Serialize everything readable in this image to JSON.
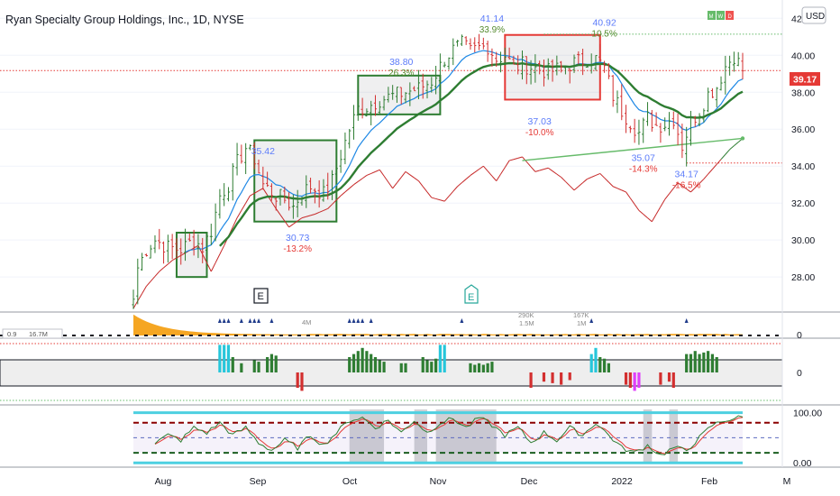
{
  "header": {
    "title": "Ryan Specialty Group Holdings, Inc., 1D, NYSE",
    "currency": "USD",
    "badges": [
      "M",
      "W",
      "D"
    ]
  },
  "colors": {
    "up": "#2e7d32",
    "down": "#d32f2f",
    "ema_fast": "#1e88e5",
    "ema_slow": "#2e7d32",
    "rs_line": "#c62828",
    "rs_line_up": "#2e7d32",
    "price_tag": "#e53935",
    "volume": "#f5a623",
    "cyan": "#26c6da",
    "magenta": "#e040fb",
    "pivot_label": "#5c7cfa",
    "pct_up": "#558b2f",
    "pct_down": "#e53935"
  },
  "chart_data": [
    {
      "type": "candlestick",
      "panel": "price",
      "x_ticks": [
        "Aug",
        "Sep",
        "Oct",
        "Nov",
        "Dec",
        "2022",
        "Feb",
        "M"
      ],
      "y_ticks": [
        "28.00",
        "30.00",
        "32.00",
        "34.00",
        "36.00",
        "38.00",
        "40.00",
        "42.00"
      ],
      "ylim": [
        26.3,
        42.6
      ],
      "last_price": "39.17",
      "last_price_value": 39.17,
      "pivots": [
        {
          "price": "35.42",
          "price_value": 35.42,
          "day": 30
        },
        {
          "price": "30.73",
          "pct": "-13.2%",
          "price_value": 30.73,
          "day": 38
        },
        {
          "price": "38.80",
          "pct": "26.3%",
          "price_value": 38.8,
          "day": 62
        },
        {
          "price": "41.14",
          "pct": "33.9%",
          "price_value": 41.14,
          "day": 83
        },
        {
          "price": "37.03",
          "pct": "-10.0%",
          "price_value": 37.03,
          "day": 94
        },
        {
          "price": "40.92",
          "pct": "10.5%",
          "price_value": 40.92,
          "day": 109
        },
        {
          "price": "35.07",
          "pct": "-14.3%",
          "price_value": 35.07,
          "day": 118
        },
        {
          "price": "34.17",
          "pct": "-16.5%",
          "price_value": 34.17,
          "day": 128
        }
      ],
      "bases": [
        {
          "start": 10,
          "end": 17,
          "low": 28.0,
          "high": 30.4,
          "color": "green"
        },
        {
          "start": 28,
          "end": 47,
          "low": 31.0,
          "high": 35.4,
          "color": "green"
        },
        {
          "start": 52,
          "end": 71,
          "low": 36.8,
          "high": 38.9,
          "color": "green"
        },
        {
          "start": 86,
          "end": 108,
          "low": 37.6,
          "high": 41.1,
          "color": "red"
        }
      ],
      "earnings_markers": [
        "E",
        "E"
      ],
      "close_anchors": [
        [
          0,
          26.8
        ],
        [
          1,
          28.5
        ],
        [
          3,
          29.5
        ],
        [
          5,
          30.0
        ],
        [
          8,
          29.6
        ],
        [
          11,
          29.5
        ],
        [
          14,
          30.0
        ],
        [
          16,
          29.6
        ],
        [
          18,
          30.5
        ],
        [
          20,
          32.4
        ],
        [
          22,
          33.0
        ],
        [
          24,
          34.2
        ],
        [
          26,
          35.0
        ],
        [
          28,
          34.4
        ],
        [
          30,
          33.0
        ],
        [
          33,
          32.4
        ],
        [
          35,
          32.2
        ],
        [
          37,
          31.8
        ],
        [
          39,
          32.6
        ],
        [
          41,
          32.9
        ],
        [
          44,
          32.5
        ],
        [
          46,
          33.2
        ],
        [
          48,
          34.6
        ],
        [
          50,
          36.0
        ],
        [
          52,
          37.1
        ],
        [
          54,
          37.2
        ],
        [
          57,
          37.6
        ],
        [
          60,
          37.8
        ],
        [
          63,
          38.0
        ],
        [
          66,
          38.2
        ],
        [
          69,
          38.6
        ],
        [
          72,
          39.8
        ],
        [
          74,
          40.3
        ],
        [
          76,
          40.6
        ],
        [
          78,
          40.2
        ],
        [
          80,
          40.4
        ],
        [
          82,
          40.5
        ],
        [
          84,
          39.8
        ],
        [
          86,
          40.0
        ],
        [
          88,
          39.3
        ],
        [
          90,
          39.5
        ],
        [
          93,
          39.3
        ],
        [
          96,
          39.1
        ],
        [
          99,
          39.3
        ],
        [
          102,
          39.6
        ],
        [
          105,
          39.8
        ],
        [
          107,
          39.8
        ],
        [
          109,
          39.3
        ],
        [
          111,
          37.8
        ],
        [
          113,
          37.0
        ],
        [
          115,
          36.4
        ],
        [
          117,
          35.8
        ],
        [
          119,
          36.6
        ],
        [
          121,
          36.2
        ],
        [
          123,
          36.3
        ],
        [
          125,
          36.6
        ],
        [
          127,
          35.1
        ],
        [
          129,
          36.4
        ],
        [
          131,
          37.0
        ],
        [
          133,
          37.9
        ],
        [
          135,
          38.3
        ],
        [
          137,
          39.4
        ],
        [
          139,
          40.0
        ],
        [
          141,
          39.2
        ]
      ],
      "rs_line_anchors": [
        [
          0,
          26.3
        ],
        [
          3,
          27.5
        ],
        [
          6,
          28.3
        ],
        [
          9,
          28.9
        ],
        [
          12,
          29.3
        ],
        [
          15,
          29.7
        ],
        [
          18,
          28.3
        ],
        [
          21,
          29.7
        ],
        [
          24,
          31.2
        ],
        [
          27,
          32.4
        ],
        [
          30,
          32.8
        ],
        [
          33,
          31.7
        ],
        [
          36,
          30.7
        ],
        [
          39,
          31.2
        ],
        [
          42,
          31.4
        ],
        [
          45,
          31.7
        ],
        [
          48,
          32.4
        ],
        [
          51,
          33.0
        ],
        [
          54,
          33.5
        ],
        [
          57,
          33.8
        ],
        [
          60,
          32.8
        ],
        [
          63,
          33.7
        ],
        [
          66,
          33.2
        ],
        [
          69,
          32.3
        ],
        [
          72,
          32.1
        ],
        [
          75,
          32.9
        ],
        [
          78,
          33.5
        ],
        [
          81,
          34.0
        ],
        [
          84,
          33.2
        ],
        [
          87,
          34.3
        ],
        [
          90,
          34.5
        ],
        [
          93,
          33.7
        ],
        [
          96,
          33.9
        ],
        [
          99,
          33.4
        ],
        [
          102,
          32.7
        ],
        [
          105,
          33.3
        ],
        [
          108,
          33.6
        ],
        [
          111,
          32.9
        ],
        [
          114,
          32.6
        ],
        [
          117,
          31.6
        ],
        [
          120,
          31.0
        ],
        [
          123,
          32.2
        ],
        [
          126,
          33.1
        ],
        [
          129,
          32.6
        ],
        [
          132,
          33.3
        ],
        [
          135,
          34.1
        ],
        [
          138,
          34.9
        ],
        [
          141,
          35.5
        ]
      ],
      "rs_trendline": [
        [
          90,
          34.3
        ],
        [
          141,
          35.5
        ]
      ]
    },
    {
      "type": "bar",
      "panel": "volume",
      "readout": [
        "0.9",
        "16.7M"
      ],
      "labels": [
        "4M",
        "290K",
        "1.5M",
        "167K",
        "1M"
      ],
      "y_tick": "0"
    },
    {
      "type": "bar",
      "panel": "breadth_histogram",
      "y_tick": "0",
      "bars": [
        [
          20,
          0.9,
          "cyan"
        ],
        [
          21,
          0.9,
          "cyan"
        ],
        [
          22,
          0.9,
          "cyan"
        ],
        [
          23,
          0.5,
          "green"
        ],
        [
          25,
          0.3,
          "green"
        ],
        [
          28,
          0.4,
          "green"
        ],
        [
          29,
          0.35,
          "green"
        ],
        [
          31,
          0.5,
          "green"
        ],
        [
          32,
          0.6,
          "green"
        ],
        [
          33,
          0.55,
          "green"
        ],
        [
          38,
          -0.5,
          "red"
        ],
        [
          39,
          -0.6,
          "red"
        ],
        [
          50,
          0.5,
          "green"
        ],
        [
          51,
          0.6,
          "green"
        ],
        [
          52,
          0.7,
          "green"
        ],
        [
          53,
          0.8,
          "green"
        ],
        [
          54,
          0.7,
          "green"
        ],
        [
          55,
          0.6,
          "green"
        ],
        [
          56,
          0.5,
          "green"
        ],
        [
          57,
          0.4,
          "green"
        ],
        [
          58,
          0.35,
          "green"
        ],
        [
          62,
          0.3,
          "green"
        ],
        [
          63,
          0.3,
          "green"
        ],
        [
          67,
          0.5,
          "green"
        ],
        [
          68,
          0.4,
          "green"
        ],
        [
          69,
          0.35,
          "green"
        ],
        [
          70,
          0.45,
          "green"
        ],
        [
          71,
          0.9,
          "cyan"
        ],
        [
          72,
          0.9,
          "cyan"
        ],
        [
          78,
          0.3,
          "green"
        ],
        [
          79,
          0.25,
          "green"
        ],
        [
          80,
          0.3,
          "green"
        ],
        [
          81,
          0.25,
          "green"
        ],
        [
          82,
          0.3,
          "green"
        ],
        [
          83,
          0.35,
          "green"
        ],
        [
          92,
          -0.5,
          "red"
        ],
        [
          95,
          -0.3,
          "red"
        ],
        [
          97,
          -0.35,
          "red"
        ],
        [
          99,
          -0.4,
          "red"
        ],
        [
          101,
          -0.25,
          "red"
        ],
        [
          106,
          0.6,
          "cyan"
        ],
        [
          107,
          0.8,
          "cyan"
        ],
        [
          108,
          0.5,
          "green"
        ],
        [
          109,
          0.45,
          "green"
        ],
        [
          110,
          0.3,
          "green"
        ],
        [
          114,
          -0.4,
          "red"
        ],
        [
          115,
          -0.5,
          "red"
        ],
        [
          116,
          -0.6,
          "magenta"
        ],
        [
          117,
          -0.5,
          "magenta"
        ],
        [
          122,
          -0.4,
          "red"
        ],
        [
          124,
          -0.3,
          "red"
        ],
        [
          125,
          -0.5,
          "red"
        ],
        [
          128,
          0.6,
          "green"
        ],
        [
          129,
          0.6,
          "green"
        ],
        [
          130,
          0.7,
          "green"
        ],
        [
          131,
          0.6,
          "green"
        ],
        [
          132,
          0.65,
          "green"
        ],
        [
          133,
          0.7,
          "green"
        ],
        [
          134,
          0.6,
          "green"
        ],
        [
          135,
          0.5,
          "green"
        ]
      ]
    },
    {
      "type": "line",
      "panel": "stochastic",
      "y_ticks": [
        "100.00",
        "0.00"
      ],
      "ylim": [
        -5,
        110
      ],
      "levels": [
        80,
        50,
        20
      ],
      "shaded_ranges": [
        [
          50,
          58
        ],
        [
          65,
          68
        ],
        [
          70,
          84
        ],
        [
          118,
          120
        ],
        [
          124,
          126
        ]
      ],
      "k_anchors": [
        [
          5,
          40
        ],
        [
          8,
          55
        ],
        [
          11,
          45
        ],
        [
          14,
          70
        ],
        [
          17,
          60
        ],
        [
          20,
          80
        ],
        [
          23,
          55
        ],
        [
          26,
          70
        ],
        [
          29,
          40
        ],
        [
          32,
          25
        ],
        [
          35,
          45
        ],
        [
          38,
          30
        ],
        [
          41,
          55
        ],
        [
          44,
          35
        ],
        [
          47,
          60
        ],
        [
          50,
          85
        ],
        [
          53,
          90
        ],
        [
          56,
          70
        ],
        [
          59,
          85
        ],
        [
          62,
          60
        ],
        [
          65,
          85
        ],
        [
          68,
          60
        ],
        [
          71,
          80
        ],
        [
          74,
          88
        ],
        [
          77,
          70
        ],
        [
          80,
          90
        ],
        [
          83,
          75
        ],
        [
          86,
          55
        ],
        [
          89,
          70
        ],
        [
          92,
          40
        ],
        [
          95,
          60
        ],
        [
          98,
          45
        ],
        [
          101,
          70
        ],
        [
          104,
          55
        ],
        [
          107,
          80
        ],
        [
          110,
          55
        ],
        [
          113,
          30
        ],
        [
          116,
          20
        ],
        [
          119,
          35
        ],
        [
          122,
          15
        ],
        [
          125,
          30
        ],
        [
          128,
          25
        ],
        [
          131,
          50
        ],
        [
          134,
          75
        ],
        [
          137,
          85
        ],
        [
          140,
          90
        ]
      ]
    }
  ]
}
